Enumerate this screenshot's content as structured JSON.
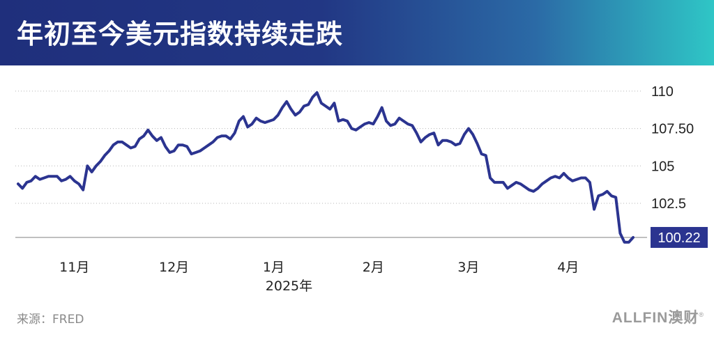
{
  "title": "年初至今美元指数持续走跌",
  "source": "来源：FRED",
  "logo": "ALLFIN澳财",
  "colors": {
    "line": "#2b3490",
    "banner_start": "#1f2f7c",
    "banner_end": "#2fc6c6",
    "grid": "#b5b5b5",
    "baseline": "#9a9a9a"
  },
  "chart_data": {
    "type": "line",
    "title": "年初至今美元指数持续走跌",
    "xlabel": "",
    "ylabel": "",
    "ylim": [
      99.8,
      110.6
    ],
    "grid": "horizontal dotted",
    "y_ticks": [
      {
        "value": 110,
        "label": "110"
      },
      {
        "value": 107.5,
        "label": "107.50"
      },
      {
        "value": 105,
        "label": "105"
      },
      {
        "value": 102.5,
        "label": "102.5"
      }
    ],
    "baseline_value": 100.22,
    "x_ticks": [
      {
        "index": 13,
        "label": "11月"
      },
      {
        "index": 36,
        "label": "12月"
      },
      {
        "index": 59,
        "label": "1月"
      },
      {
        "index": 82,
        "label": "2月"
      },
      {
        "index": 104,
        "label": "3月"
      },
      {
        "index": 127,
        "label": "4月"
      }
    ],
    "x_sublabel": {
      "index": 59,
      "label": "2025年"
    },
    "last_value_label": "100.22",
    "series": [
      {
        "values": [
          103.8,
          103.5,
          103.9,
          104.0,
          104.3,
          104.1,
          104.2,
          104.3,
          104.3,
          104.3,
          104.0,
          104.1,
          104.3,
          104.0,
          103.8,
          103.4,
          105.0,
          104.6,
          105.0,
          105.3,
          105.7,
          106.0,
          106.4,
          106.6,
          106.6,
          106.4,
          106.2,
          106.3,
          106.8,
          107.0,
          107.4,
          107.0,
          106.7,
          106.9,
          106.3,
          105.9,
          106.0,
          106.4,
          106.4,
          106.3,
          105.8,
          105.9,
          106.0,
          106.2,
          106.4,
          106.6,
          106.9,
          107.0,
          107.0,
          106.8,
          107.2,
          108.0,
          108.3,
          107.6,
          107.8,
          108.2,
          108.0,
          107.9,
          108.0,
          108.1,
          108.4,
          108.9,
          109.3,
          108.8,
          108.4,
          108.6,
          109.0,
          109.1,
          109.6,
          109.9,
          109.2,
          109.0,
          108.8,
          109.2,
          108.0,
          108.1,
          108.0,
          107.5,
          107.4,
          107.6,
          107.8,
          107.9,
          107.8,
          108.3,
          108.9,
          108.0,
          107.7,
          107.8,
          108.2,
          108.0,
          107.8,
          107.7,
          107.2,
          106.6,
          106.9,
          107.1,
          107.2,
          106.4,
          106.7,
          106.7,
          106.6,
          106.4,
          106.5,
          107.1,
          107.5,
          107.1,
          106.5,
          105.8,
          105.7,
          104.2,
          103.9,
          103.9,
          103.9,
          103.5,
          103.7,
          103.9,
          103.8,
          103.6,
          103.4,
          103.3,
          103.5,
          103.8,
          104.0,
          104.2,
          104.3,
          104.2,
          104.5,
          104.2,
          104.0,
          104.1,
          104.2,
          104.2,
          103.9,
          102.1,
          103.0,
          103.1,
          103.3,
          103.0,
          102.9,
          100.5,
          99.9,
          99.9,
          100.22
        ]
      }
    ]
  }
}
